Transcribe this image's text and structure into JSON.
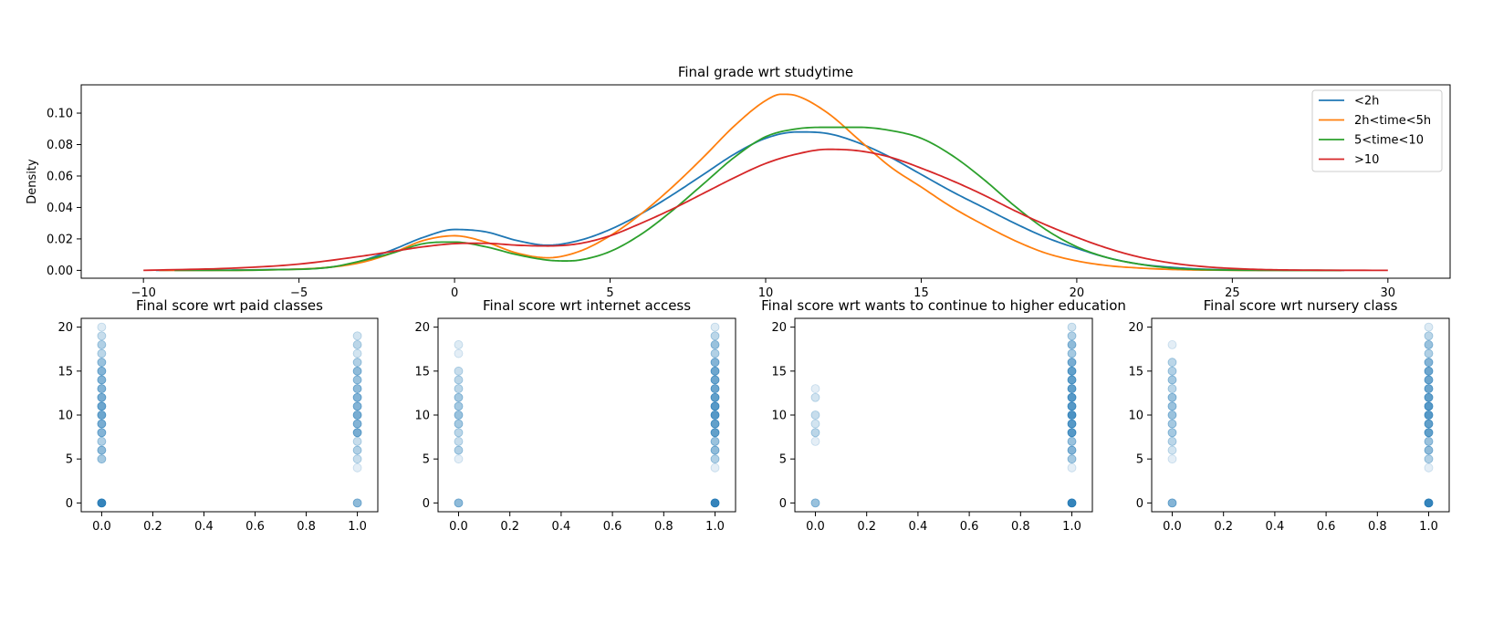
{
  "chart_data": [
    {
      "type": "line",
      "title": "Final grade wrt studytime",
      "xlabel": "",
      "ylabel": "Density",
      "xlim": [
        -12,
        32
      ],
      "ylim": [
        -0.005,
        0.118
      ],
      "xticks": [
        -10,
        -5,
        0,
        5,
        10,
        15,
        20,
        25,
        30
      ],
      "xtick_labels": [
        "−10",
        "−5",
        "0",
        "5",
        "10",
        "15",
        "20",
        "25",
        "30"
      ],
      "yticks": [
        0.0,
        0.02,
        0.04,
        0.06,
        0.08,
        0.1
      ],
      "ytick_labels": [
        "0.00",
        "0.02",
        "0.04",
        "0.06",
        "0.08",
        "0.10"
      ],
      "legend_position": "top-right",
      "series": [
        {
          "name": "<2h",
          "color": "#1f77b4",
          "x": [
            -9.6,
            -6,
            -4,
            -3,
            -2,
            -1,
            0,
            1,
            2,
            3,
            4,
            5,
            6,
            7,
            8,
            9,
            10,
            11,
            12,
            13,
            14,
            15,
            16,
            17,
            18,
            19,
            20,
            21,
            22,
            23,
            24,
            25,
            26,
            28.6
          ],
          "y": [
            0.0,
            0.0005,
            0.002,
            0.006,
            0.013,
            0.021,
            0.026,
            0.0245,
            0.019,
            0.016,
            0.019,
            0.026,
            0.036,
            0.048,
            0.061,
            0.074,
            0.084,
            0.088,
            0.087,
            0.081,
            0.072,
            0.061,
            0.05,
            0.04,
            0.03,
            0.021,
            0.014,
            0.008,
            0.004,
            0.002,
            0.0008,
            0.0003,
            0.0001,
            0.0
          ]
        },
        {
          "name": "2h<time<5h",
          "color": "#ff7f0e",
          "x": [
            -9.5,
            -6,
            -4,
            -3,
            -2,
            -1,
            0,
            1,
            2,
            3,
            4,
            5,
            6,
            7,
            8,
            9,
            10,
            10.5,
            11,
            12,
            13,
            14,
            15,
            16,
            17,
            18,
            19,
            20,
            21,
            22,
            23,
            24,
            28.5
          ],
          "y": [
            0.0,
            0.0003,
            0.002,
            0.005,
            0.011,
            0.019,
            0.022,
            0.018,
            0.011,
            0.008,
            0.012,
            0.022,
            0.036,
            0.053,
            0.072,
            0.092,
            0.108,
            0.112,
            0.111,
            0.1,
            0.083,
            0.066,
            0.053,
            0.04,
            0.029,
            0.019,
            0.011,
            0.006,
            0.003,
            0.0015,
            0.0006,
            0.0002,
            0.0
          ]
        },
        {
          "name": "5<time<10",
          "color": "#2ca02c",
          "x": [
            -9,
            -6,
            -4,
            -3,
            -2,
            -1,
            0,
            1,
            2,
            3,
            3.5,
            4,
            5,
            6,
            7,
            8,
            9,
            10,
            11,
            12,
            13,
            14,
            15,
            16,
            17,
            18,
            19,
            20,
            21,
            22,
            23,
            24,
            28.5
          ],
          "y": [
            0.0,
            0.0003,
            0.002,
            0.006,
            0.011,
            0.017,
            0.018,
            0.015,
            0.01,
            0.0065,
            0.006,
            0.0065,
            0.012,
            0.023,
            0.038,
            0.055,
            0.072,
            0.085,
            0.09,
            0.091,
            0.091,
            0.089,
            0.084,
            0.073,
            0.058,
            0.041,
            0.026,
            0.015,
            0.008,
            0.004,
            0.0015,
            0.0005,
            0.0
          ]
        },
        {
          "name": ">10",
          "color": "#d62728",
          "x": [
            -10,
            -7,
            -5,
            -3,
            -2,
            -1,
            0,
            1,
            2,
            3,
            4,
            5,
            6,
            7,
            8,
            9,
            10,
            11,
            12,
            13,
            14,
            15,
            16,
            17,
            18,
            19,
            20,
            21,
            22,
            23,
            24,
            25,
            26,
            27,
            30
          ],
          "y": [
            0.0,
            0.0015,
            0.004,
            0.009,
            0.012,
            0.015,
            0.017,
            0.0172,
            0.016,
            0.0155,
            0.017,
            0.022,
            0.03,
            0.039,
            0.049,
            0.059,
            0.068,
            0.074,
            0.077,
            0.076,
            0.072,
            0.065,
            0.057,
            0.048,
            0.038,
            0.029,
            0.021,
            0.014,
            0.0085,
            0.0048,
            0.0025,
            0.0012,
            0.0005,
            0.0002,
            0.0
          ]
        }
      ]
    },
    {
      "type": "scatter",
      "title": "Final score wrt paid classes",
      "xlim": [
        -0.08,
        1.08
      ],
      "ylim": [
        -1,
        21
      ],
      "xticks": [
        0,
        0.2,
        0.4,
        0.6,
        0.8,
        1.0
      ],
      "xtick_labels": [
        "0.0",
        "0.2",
        "0.4",
        "0.6",
        "0.8",
        "1.0"
      ],
      "yticks": [
        0,
        5,
        10,
        15,
        20
      ],
      "ytick_labels": [
        "0",
        "5",
        "10",
        "15",
        "20"
      ],
      "color": "#1f77b4",
      "points": [
        [
          0,
          0,
          0.9
        ],
        [
          0,
          5,
          0.4
        ],
        [
          0,
          6,
          0.5
        ],
        [
          0,
          7,
          0.35
        ],
        [
          0,
          8,
          0.55
        ],
        [
          0,
          9,
          0.6
        ],
        [
          0,
          10,
          0.65
        ],
        [
          0,
          11,
          0.65
        ],
        [
          0,
          12,
          0.6
        ],
        [
          0,
          13,
          0.55
        ],
        [
          0,
          14,
          0.55
        ],
        [
          0,
          15,
          0.55
        ],
        [
          0,
          16,
          0.45
        ],
        [
          0,
          17,
          0.3
        ],
        [
          0,
          18,
          0.35
        ],
        [
          0,
          19,
          0.25
        ],
        [
          0,
          20,
          0.15
        ],
        [
          1,
          0,
          0.5
        ],
        [
          1,
          4,
          0.12
        ],
        [
          1,
          5,
          0.25
        ],
        [
          1,
          6,
          0.35
        ],
        [
          1,
          7,
          0.25
        ],
        [
          1,
          8,
          0.6
        ],
        [
          1,
          9,
          0.55
        ],
        [
          1,
          10,
          0.6
        ],
        [
          1,
          11,
          0.55
        ],
        [
          1,
          12,
          0.55
        ],
        [
          1,
          13,
          0.5
        ],
        [
          1,
          14,
          0.45
        ],
        [
          1,
          15,
          0.5
        ],
        [
          1,
          16,
          0.35
        ],
        [
          1,
          17,
          0.2
        ],
        [
          1,
          18,
          0.3
        ],
        [
          1,
          19,
          0.2
        ]
      ]
    },
    {
      "type": "scatter",
      "title": "Final score wrt internet access",
      "xlim": [
        -0.08,
        1.08
      ],
      "ylim": [
        -1,
        21
      ],
      "xticks": [
        0,
        0.2,
        0.4,
        0.6,
        0.8,
        1.0
      ],
      "xtick_labels": [
        "0.0",
        "0.2",
        "0.4",
        "0.6",
        "0.8",
        "1.0"
      ],
      "yticks": [
        0,
        5,
        10,
        15,
        20
      ],
      "ytick_labels": [
        "0",
        "5",
        "10",
        "15",
        "20"
      ],
      "color": "#1f77b4",
      "points": [
        [
          0,
          0,
          0.5
        ],
        [
          0,
          5,
          0.12
        ],
        [
          0,
          6,
          0.35
        ],
        [
          0,
          7,
          0.25
        ],
        [
          0,
          8,
          0.3
        ],
        [
          0,
          9,
          0.4
        ],
        [
          0,
          10,
          0.45
        ],
        [
          0,
          11,
          0.4
        ],
        [
          0,
          12,
          0.4
        ],
        [
          0,
          13,
          0.3
        ],
        [
          0,
          14,
          0.3
        ],
        [
          0,
          15,
          0.25
        ],
        [
          0,
          17,
          0.12
        ],
        [
          0,
          18,
          0.15
        ],
        [
          1,
          0,
          0.9
        ],
        [
          1,
          4,
          0.12
        ],
        [
          1,
          5,
          0.35
        ],
        [
          1,
          6,
          0.5
        ],
        [
          1,
          7,
          0.45
        ],
        [
          1,
          8,
          0.7
        ],
        [
          1,
          9,
          0.7
        ],
        [
          1,
          10,
          0.75
        ],
        [
          1,
          11,
          0.75
        ],
        [
          1,
          12,
          0.7
        ],
        [
          1,
          13,
          0.65
        ],
        [
          1,
          14,
          0.65
        ],
        [
          1,
          15,
          0.65
        ],
        [
          1,
          16,
          0.55
        ],
        [
          1,
          17,
          0.35
        ],
        [
          1,
          18,
          0.45
        ],
        [
          1,
          19,
          0.3
        ],
        [
          1,
          20,
          0.15
        ]
      ]
    },
    {
      "type": "scatter",
      "title": "Final score wrt wants to continue to higher education",
      "xlim": [
        -0.08,
        1.08
      ],
      "ylim": [
        -1,
        21
      ],
      "xticks": [
        0,
        0.2,
        0.4,
        0.6,
        0.8,
        1.0
      ],
      "xtick_labels": [
        "0.0",
        "0.2",
        "0.4",
        "0.6",
        "0.8",
        "1.0"
      ],
      "yticks": [
        0,
        5,
        10,
        15,
        20
      ],
      "ytick_labels": [
        "0",
        "5",
        "10",
        "15",
        "20"
      ],
      "color": "#1f77b4",
      "points": [
        [
          0,
          0,
          0.45
        ],
        [
          0,
          7,
          0.12
        ],
        [
          0,
          8,
          0.3
        ],
        [
          0,
          9,
          0.2
        ],
        [
          0,
          10,
          0.25
        ],
        [
          0,
          12,
          0.2
        ],
        [
          0,
          13,
          0.12
        ],
        [
          1,
          0,
          0.9
        ],
        [
          1,
          4,
          0.12
        ],
        [
          1,
          5,
          0.4
        ],
        [
          1,
          6,
          0.55
        ],
        [
          1,
          7,
          0.45
        ],
        [
          1,
          8,
          0.75
        ],
        [
          1,
          9,
          0.75
        ],
        [
          1,
          10,
          0.8
        ],
        [
          1,
          11,
          0.75
        ],
        [
          1,
          12,
          0.75
        ],
        [
          1,
          13,
          0.7
        ],
        [
          1,
          14,
          0.7
        ],
        [
          1,
          15,
          0.7
        ],
        [
          1,
          16,
          0.6
        ],
        [
          1,
          17,
          0.4
        ],
        [
          1,
          18,
          0.5
        ],
        [
          1,
          19,
          0.35
        ],
        [
          1,
          20,
          0.2
        ]
      ]
    },
    {
      "type": "scatter",
      "title": "Final score wrt nursery class",
      "xlim": [
        -0.08,
        1.08
      ],
      "ylim": [
        -1,
        21
      ],
      "xticks": [
        0,
        0.2,
        0.4,
        0.6,
        0.8,
        1.0
      ],
      "xtick_labels": [
        "0.0",
        "0.2",
        "0.4",
        "0.6",
        "0.8",
        "1.0"
      ],
      "yticks": [
        0,
        5,
        10,
        15,
        20
      ],
      "ytick_labels": [
        "0",
        "5",
        "10",
        "15",
        "20"
      ],
      "color": "#1f77b4",
      "points": [
        [
          0,
          0,
          0.55
        ],
        [
          0,
          5,
          0.12
        ],
        [
          0,
          6,
          0.2
        ],
        [
          0,
          7,
          0.3
        ],
        [
          0,
          8,
          0.4
        ],
        [
          0,
          9,
          0.4
        ],
        [
          0,
          10,
          0.45
        ],
        [
          0,
          11,
          0.45
        ],
        [
          0,
          12,
          0.45
        ],
        [
          0,
          13,
          0.3
        ],
        [
          0,
          14,
          0.4
        ],
        [
          0,
          15,
          0.35
        ],
        [
          0,
          16,
          0.3
        ],
        [
          0,
          18,
          0.12
        ],
        [
          1,
          0,
          0.9
        ],
        [
          1,
          4,
          0.12
        ],
        [
          1,
          5,
          0.35
        ],
        [
          1,
          6,
          0.5
        ],
        [
          1,
          7,
          0.45
        ],
        [
          1,
          8,
          0.7
        ],
        [
          1,
          9,
          0.7
        ],
        [
          1,
          10,
          0.75
        ],
        [
          1,
          11,
          0.75
        ],
        [
          1,
          12,
          0.7
        ],
        [
          1,
          13,
          0.65
        ],
        [
          1,
          14,
          0.65
        ],
        [
          1,
          15,
          0.65
        ],
        [
          1,
          16,
          0.55
        ],
        [
          1,
          17,
          0.35
        ],
        [
          1,
          18,
          0.45
        ],
        [
          1,
          19,
          0.3
        ],
        [
          1,
          20,
          0.15
        ]
      ]
    }
  ]
}
